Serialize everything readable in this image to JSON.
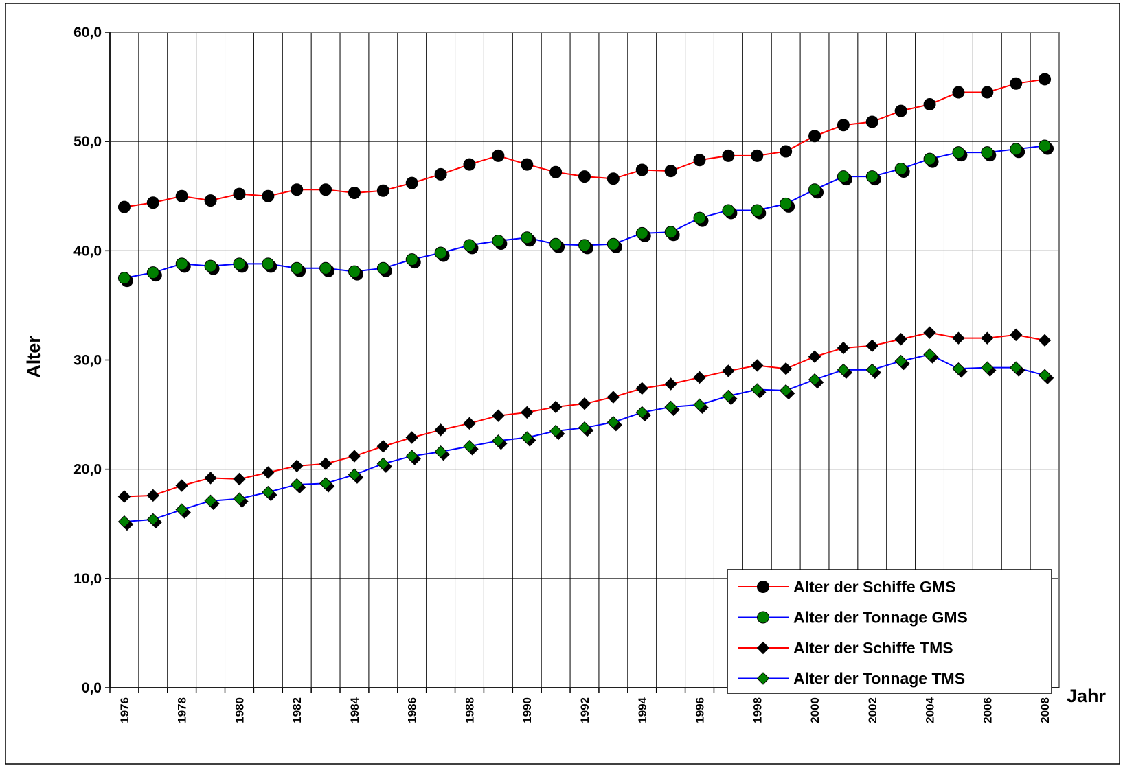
{
  "chart_data": {
    "type": "line",
    "y_label": "Alter",
    "x_label": "Jahr",
    "categories": [
      "1976",
      null,
      "1978",
      null,
      "1980",
      null,
      "1982",
      null,
      "1984",
      null,
      "1986",
      null,
      "1988",
      null,
      "1990",
      null,
      "1992",
      null,
      "1994",
      null,
      "1996",
      null,
      "1998",
      null,
      "2000",
      null,
      "2002",
      null,
      "2004",
      null,
      "2006",
      null,
      "2008"
    ],
    "series": [
      {
        "name": "Alter der Schiffe GMS",
        "color": "#ff0000",
        "marker": "circle",
        "marker_color": "#000000",
        "values": [
          44.0,
          44.4,
          45.0,
          44.6,
          45.2,
          45.0,
          45.6,
          45.6,
          45.3,
          45.5,
          46.2,
          47.0,
          47.9,
          48.7,
          47.9,
          47.2,
          46.8,
          46.6,
          47.4,
          47.3,
          48.3,
          48.7,
          48.7,
          49.1,
          50.5,
          51.5,
          51.8,
          52.8,
          53.4,
          54.5,
          54.5,
          55.3,
          55.7
        ]
      },
      {
        "name": "Alter der Tonnage GMS",
        "color": "#0000ff",
        "marker": "circle",
        "marker_color": "#008000",
        "values": [
          37.5,
          38.0,
          38.8,
          38.6,
          38.8,
          38.8,
          38.4,
          38.4,
          38.1,
          38.4,
          39.2,
          39.8,
          40.5,
          40.9,
          41.2,
          40.6,
          40.5,
          40.6,
          41.6,
          41.7,
          43.0,
          43.7,
          43.7,
          44.3,
          45.6,
          46.8,
          46.8,
          47.5,
          48.4,
          49.0,
          49.0,
          49.3,
          49.6
        ]
      },
      {
        "name": "Alter der Schiffe TMS",
        "color": "#ff0000",
        "marker": "diamond",
        "marker_color": "#000000",
        "values": [
          17.5,
          17.6,
          18.5,
          19.2,
          19.1,
          19.7,
          20.3,
          20.5,
          21.2,
          22.1,
          22.9,
          23.6,
          24.2,
          24.9,
          25.2,
          25.7,
          26.0,
          26.6,
          27.4,
          27.8,
          28.4,
          29.0,
          29.5,
          29.2,
          30.3,
          31.1,
          31.3,
          31.9,
          32.5,
          32.0,
          32.0,
          32.3,
          31.8
        ]
      },
      {
        "name": "Alter der Tonnage TMS",
        "color": "#0000ff",
        "marker": "diamond",
        "marker_color": "#008000",
        "values": [
          15.2,
          15.4,
          16.3,
          17.1,
          17.3,
          17.9,
          18.6,
          18.7,
          19.5,
          20.5,
          21.2,
          21.6,
          22.1,
          22.6,
          22.9,
          23.5,
          23.8,
          24.3,
          25.2,
          25.7,
          25.9,
          26.7,
          27.3,
          27.2,
          28.2,
          29.1,
          29.1,
          29.9,
          30.5,
          29.2,
          29.3,
          29.3,
          28.6
        ]
      }
    ],
    "ylim": [
      0,
      60
    ],
    "yticks": [
      {
        "value": 0,
        "label": "0,0"
      },
      {
        "value": 10,
        "label": "10,0"
      },
      {
        "value": 20,
        "label": "20,0"
      },
      {
        "value": 30,
        "label": "30,0"
      },
      {
        "value": 40,
        "label": "40,0"
      },
      {
        "value": 50,
        "label": "50,0"
      },
      {
        "value": 60,
        "label": "60,0"
      }
    ],
    "grid": true,
    "legend_position": "lower right"
  }
}
